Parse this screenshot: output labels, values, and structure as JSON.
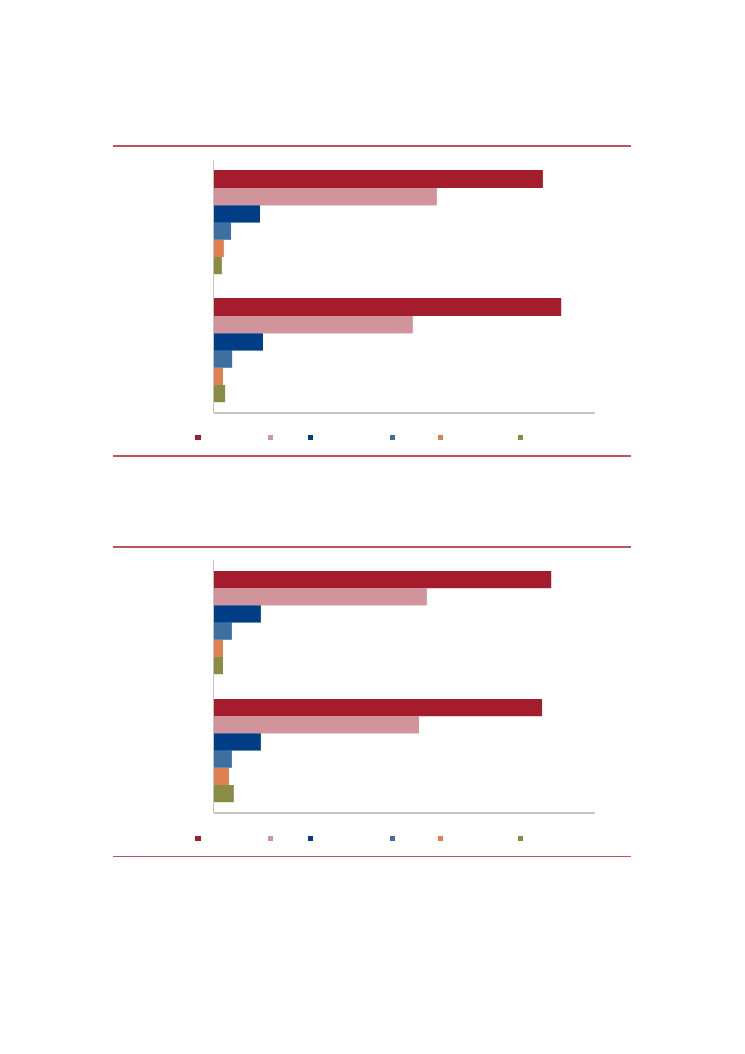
{
  "chart_data": [
    {
      "type": "bar",
      "orientation": "horizontal",
      "categories": [
        null,
        null
      ],
      "xlim": [
        0,
        100
      ],
      "grid": false,
      "series": [
        {
          "color": "#a51c2c",
          "values": [
            86.5,
            91.3
          ]
        },
        {
          "color": "#d0949a",
          "values": [
            58.6,
            52.2
          ]
        },
        {
          "color": "#003f87",
          "values": [
            12.3,
            13.0
          ]
        },
        {
          "color": "#3e6fa3",
          "values": [
            4.5,
            5.0
          ]
        },
        {
          "color": "#e07f4f",
          "values": [
            2.8,
            2.4
          ]
        },
        {
          "color": "#8a8c45",
          "values": [
            2.1,
            3.1
          ]
        }
      ]
    },
    {
      "type": "bar",
      "orientation": "horizontal",
      "categories": [
        null,
        null
      ],
      "xlim": [
        0,
        100
      ],
      "grid": false,
      "series": [
        {
          "color": "#a51c2c",
          "values": [
            88.7,
            86.3
          ]
        },
        {
          "color": "#d0949a",
          "values": [
            56.0,
            53.9
          ]
        },
        {
          "color": "#003f87",
          "values": [
            12.5,
            12.5
          ]
        },
        {
          "color": "#3e6fa3",
          "values": [
            4.7,
            4.7
          ]
        },
        {
          "color": "#e07f4f",
          "values": [
            2.4,
            4.0
          ]
        },
        {
          "color": "#8a8c45",
          "values": [
            2.4,
            5.4
          ]
        }
      ]
    }
  ]
}
